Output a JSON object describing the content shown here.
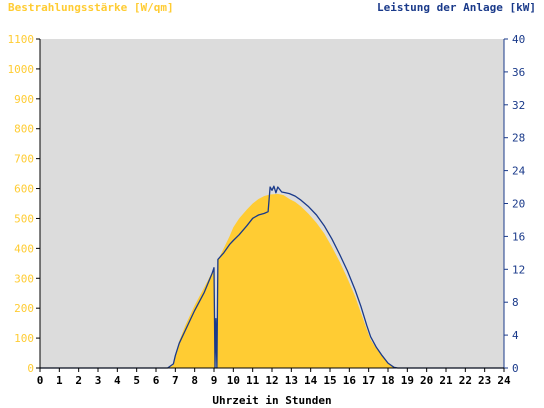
{
  "chart_data": {
    "type": "area",
    "title_left": "Bestrahlungsstärke [W/qm]",
    "title_right": "Leistung der Anlage [kW]",
    "xlabel": "Uhrzeit in Stunden",
    "xlim": [
      0,
      24
    ],
    "x_ticks": [
      0,
      1,
      2,
      3,
      4,
      5,
      6,
      7,
      8,
      9,
      10,
      11,
      12,
      13,
      14,
      15,
      16,
      17,
      18,
      19,
      20,
      21,
      22,
      23,
      24
    ],
    "y_left": {
      "lim": [
        0,
        1100
      ],
      "ticks": [
        0,
        100,
        200,
        300,
        400,
        500,
        600,
        700,
        800,
        900,
        1000,
        1100
      ],
      "color": "#ffcc33"
    },
    "y_right": {
      "lim": [
        0,
        40
      ],
      "ticks": [
        0,
        4,
        8,
        12,
        16,
        20,
        24,
        28,
        32,
        36,
        40
      ],
      "color": "#1a3a8a"
    },
    "grid": false,
    "plot_background": "#dcdcdc",
    "series": [
      {
        "type": "area",
        "axis": "left",
        "color": "#ffcc33",
        "points": [
          [
            0,
            0
          ],
          [
            6.6,
            0
          ],
          [
            6.9,
            10
          ],
          [
            7.0,
            40
          ],
          [
            7.2,
            90
          ],
          [
            7.5,
            140
          ],
          [
            8.0,
            210
          ],
          [
            8.5,
            270
          ],
          [
            8.9,
            320
          ],
          [
            9.0,
            330
          ],
          [
            9.05,
            0
          ],
          [
            9.15,
            0
          ],
          [
            9.2,
            360
          ],
          [
            9.5,
            400
          ],
          [
            9.8,
            440
          ],
          [
            10.0,
            470
          ],
          [
            10.3,
            500
          ],
          [
            10.7,
            530
          ],
          [
            11.0,
            550
          ],
          [
            11.3,
            565
          ],
          [
            11.6,
            575
          ],
          [
            11.9,
            580
          ],
          [
            12.3,
            582
          ],
          [
            12.6,
            578
          ],
          [
            12.9,
            565
          ],
          [
            13.2,
            555
          ],
          [
            13.5,
            540
          ],
          [
            13.9,
            515
          ],
          [
            14.3,
            485
          ],
          [
            14.7,
            450
          ],
          [
            15.1,
            405
          ],
          [
            15.5,
            355
          ],
          [
            15.9,
            300
          ],
          [
            16.3,
            240
          ],
          [
            16.6,
            185
          ],
          [
            16.9,
            130
          ],
          [
            17.1,
            95
          ],
          [
            17.4,
            65
          ],
          [
            17.7,
            40
          ],
          [
            18.0,
            15
          ],
          [
            18.3,
            2
          ],
          [
            18.5,
            0
          ],
          [
            24,
            0
          ]
        ]
      },
      {
        "type": "line",
        "axis": "right",
        "color": "#1a3a8a",
        "points": [
          [
            0,
            0
          ],
          [
            6.6,
            0
          ],
          [
            6.9,
            0.5
          ],
          [
            7.0,
            1.5
          ],
          [
            7.2,
            3
          ],
          [
            7.5,
            4.5
          ],
          [
            8.0,
            7
          ],
          [
            8.5,
            9.2
          ],
          [
            8.9,
            11.5
          ],
          [
            9.0,
            12.2
          ],
          [
            9.05,
            0
          ],
          [
            9.1,
            6
          ],
          [
            9.15,
            0
          ],
          [
            9.2,
            13.2
          ],
          [
            9.5,
            14
          ],
          [
            9.8,
            15
          ],
          [
            10.0,
            15.5
          ],
          [
            10.3,
            16.2
          ],
          [
            10.7,
            17.3
          ],
          [
            11.0,
            18.2
          ],
          [
            11.3,
            18.6
          ],
          [
            11.6,
            18.8
          ],
          [
            11.8,
            19
          ],
          [
            11.9,
            22
          ],
          [
            12.0,
            21.6
          ],
          [
            12.1,
            22.1
          ],
          [
            12.2,
            21.3
          ],
          [
            12.3,
            22
          ],
          [
            12.5,
            21.4
          ],
          [
            12.7,
            21.3
          ],
          [
            12.9,
            21.2
          ],
          [
            13.2,
            20.9
          ],
          [
            13.5,
            20.4
          ],
          [
            13.9,
            19.6
          ],
          [
            14.3,
            18.6
          ],
          [
            14.7,
            17.3
          ],
          [
            15.1,
            15.7
          ],
          [
            15.5,
            13.8
          ],
          [
            15.9,
            11.8
          ],
          [
            16.3,
            9.5
          ],
          [
            16.6,
            7.5
          ],
          [
            16.9,
            5.2
          ],
          [
            17.1,
            3.8
          ],
          [
            17.4,
            2.5
          ],
          [
            17.7,
            1.5
          ],
          [
            18.0,
            0.6
          ],
          [
            18.3,
            0.1
          ],
          [
            18.5,
            0
          ],
          [
            24,
            0
          ]
        ]
      }
    ]
  }
}
